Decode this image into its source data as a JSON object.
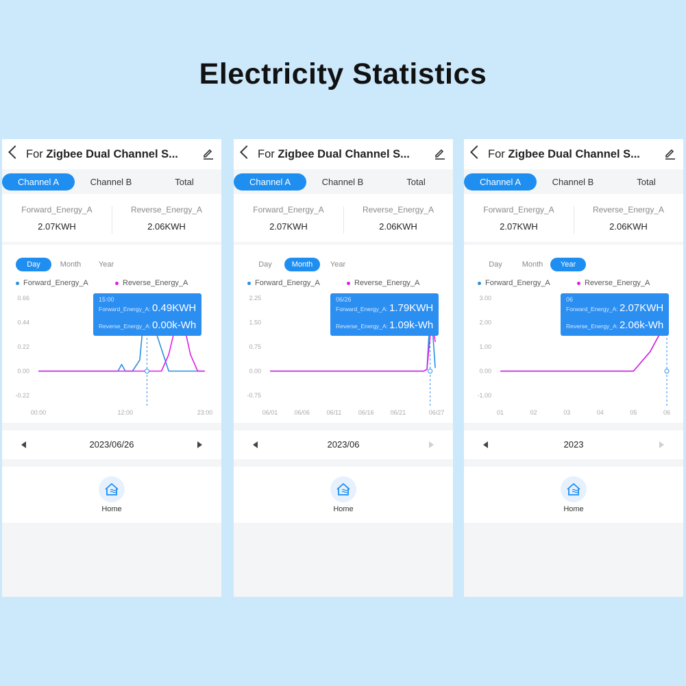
{
  "page_title": "Electricity Statistics",
  "colors": {
    "accent": "#1e8ef0",
    "forward": "#2a8fdc",
    "reverse": "#e01ee0"
  },
  "icons": {
    "back": "chevron-left-icon",
    "edit": "pencil-icon",
    "home": "home-energy-icon",
    "prev": "triangle-left-icon",
    "next": "triangle-right-icon"
  },
  "panels": [
    {
      "device_prefix": "For",
      "device_name": "Zigbee Dual Channel S...",
      "channel_tabs": [
        "Channel A",
        "Channel B",
        "Total"
      ],
      "active_channel": "Channel A",
      "forward_label": "Forward_Energy_A",
      "forward_value": "2.07KWH",
      "reverse_label": "Reverse_Energy_A",
      "reverse_value": "2.06KWH",
      "period_tabs": [
        "Day",
        "Month",
        "Year"
      ],
      "active_period": "Day",
      "legend_forward": "Forward_Energy_A",
      "legend_reverse": "Reverse_Energy_A",
      "tooltip": {
        "date": "15:00",
        "forward_key": "Forward_Energy_A:",
        "forward_value": "0.49KWH",
        "reverse_key": "Reverse_Energy_A:",
        "reverse_value": "0.00k-Wh"
      },
      "nav_date": "2023/06/26",
      "next_enabled": true,
      "home_label": "Home"
    },
    {
      "device_prefix": "For",
      "device_name": "Zigbee Dual Channel S...",
      "channel_tabs": [
        "Channel A",
        "Channel B",
        "Total"
      ],
      "active_channel": "Channel A",
      "forward_label": "Forward_Energy_A",
      "forward_value": "2.07KWH",
      "reverse_label": "Reverse_Energy_A",
      "reverse_value": "2.06KWH",
      "period_tabs": [
        "Day",
        "Month",
        "Year"
      ],
      "active_period": "Month",
      "legend_forward": "Forward_Energy_A",
      "legend_reverse": "Reverse_Energy_A",
      "tooltip": {
        "date": "06/26",
        "forward_key": "Forward_Energy_A:",
        "forward_value": "1.79KWH",
        "reverse_key": "Reverse_Energy_A:",
        "reverse_value": "1.09k-Wh"
      },
      "nav_date": "2023/06",
      "next_enabled": false,
      "home_label": "Home"
    },
    {
      "device_prefix": "For",
      "device_name": "Zigbee Dual Channel S...",
      "channel_tabs": [
        "Channel A",
        "Channel B",
        "Total"
      ],
      "active_channel": "Channel A",
      "forward_label": "Forward_Energy_A",
      "forward_value": "2.07KWH",
      "reverse_label": "Reverse_Energy_A",
      "reverse_value": "2.06KWH",
      "period_tabs": [
        "Day",
        "Month",
        "Year"
      ],
      "active_period": "Year",
      "legend_forward": "Forward_Energy_A",
      "legend_reverse": "Reverse_Energy_A",
      "tooltip": {
        "date": "06",
        "forward_key": "Forward_Energy_A:",
        "forward_value": "2.07KWH",
        "reverse_key": "Reverse_Energy_A:",
        "reverse_value": "2.06k-Wh"
      },
      "nav_date": "2023",
      "next_enabled": false,
      "home_label": "Home"
    }
  ],
  "chart_data": [
    {
      "type": "line",
      "yticks": [
        "0.66",
        "0.44",
        "0.22",
        "0.00",
        "-0.22"
      ],
      "ytick_values": [
        0.66,
        0.44,
        0.22,
        0,
        -0.22
      ],
      "ylim": [
        -0.22,
        0.66
      ],
      "xticks": [
        "00:00",
        "12:00",
        "23:00"
      ],
      "xtick_values": [
        0,
        12,
        23
      ],
      "xlim": [
        0,
        23
      ],
      "x_cursor": 15,
      "series": [
        {
          "name": "Forward_Energy_A",
          "x": [
            0,
            10,
            11,
            11.5,
            12,
            13,
            14,
            14.5,
            15,
            16,
            17,
            18,
            19,
            20,
            21,
            22,
            23
          ],
          "y": [
            0,
            0,
            0,
            0.06,
            0,
            0,
            0.1,
            0.45,
            0.49,
            0.4,
            0.2,
            0.0,
            0,
            0,
            0,
            0,
            0
          ]
        },
        {
          "name": "Reverse_Energy_A",
          "x": [
            0,
            15,
            16,
            17,
            18,
            19,
            20,
            21,
            22,
            23
          ],
          "y": [
            0,
            0,
            0,
            0,
            0.15,
            0.42,
            0.45,
            0.15,
            0,
            0
          ]
        }
      ]
    },
    {
      "type": "line",
      "yticks": [
        "2.25",
        "1.50",
        "0.75",
        "0.00",
        "-0.75"
      ],
      "ytick_values": [
        2.25,
        1.5,
        0.75,
        0,
        -0.75
      ],
      "ylim": [
        -0.75,
        2.25
      ],
      "xticks": [
        "06/01",
        "06/06",
        "06/11",
        "06/16",
        "06/21",
        "06/27"
      ],
      "xtick_values": [
        1,
        6,
        11,
        16,
        21,
        27
      ],
      "xlim": [
        1,
        27
      ],
      "x_cursor": 26,
      "series": [
        {
          "name": "Forward_Energy_A",
          "x": [
            1,
            25,
            25.5,
            26,
            26.4,
            26.8
          ],
          "y": [
            0,
            0,
            0.05,
            1.79,
            1.2,
            0.1
          ]
        },
        {
          "name": "Reverse_Energy_A",
          "x": [
            1,
            25,
            25.5,
            26,
            26.4,
            26.8
          ],
          "y": [
            0,
            0,
            0.05,
            1.09,
            1.4,
            0.9
          ]
        }
      ]
    },
    {
      "type": "line",
      "yticks": [
        "3.00",
        "2.00",
        "1.00",
        "0.00",
        "-1.00"
      ],
      "ytick_values": [
        3,
        2,
        1,
        0,
        -1
      ],
      "ylim": [
        -1,
        3
      ],
      "xticks": [
        "01",
        "02",
        "03",
        "04",
        "05",
        "06"
      ],
      "xtick_values": [
        1,
        2,
        3,
        4,
        5,
        6
      ],
      "xlim": [
        1,
        6
      ],
      "x_cursor": 6,
      "series": [
        {
          "name": "Forward_Energy_A",
          "x": [
            1,
            2,
            3,
            4,
            5,
            5.5,
            6
          ],
          "y": [
            0,
            0,
            0,
            0,
            0,
            0.8,
            2.07
          ]
        },
        {
          "name": "Reverse_Energy_A",
          "x": [
            1,
            2,
            3,
            4,
            5,
            5.5,
            6
          ],
          "y": [
            0,
            0,
            0,
            0,
            0,
            0.8,
            2.06
          ]
        }
      ]
    }
  ]
}
